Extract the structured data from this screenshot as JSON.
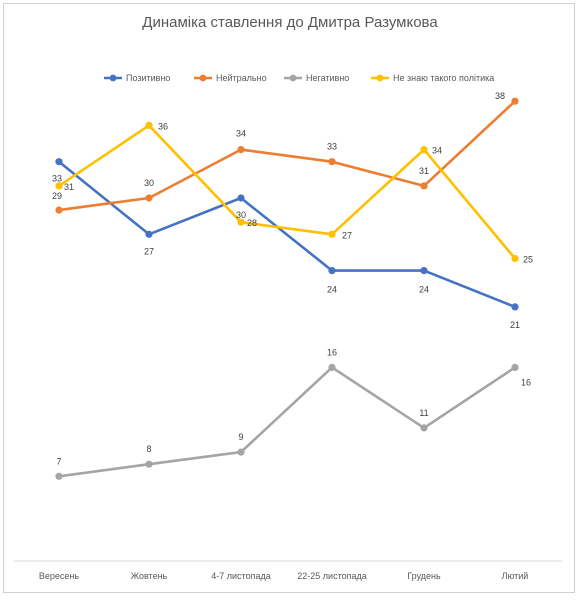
{
  "chart_data": {
    "type": "line",
    "title": "Динаміка ставлення до Дмитра Разумкова",
    "categories": [
      "Вересень",
      "Жовтень",
      "4-7 листопада",
      "22-25 листопада",
      "Грудень",
      "Лютий"
    ],
    "ylim": [
      0,
      45
    ],
    "grid": false,
    "legend_position": "top",
    "series": [
      {
        "name": "Позитивно",
        "color": "#4472C4",
        "values": [
          33,
          27,
          30,
          24,
          24,
          21
        ]
      },
      {
        "name": "Нейтрально",
        "color": "#ED7D31",
        "values": [
          29,
          30,
          34,
          33,
          31,
          38
        ]
      },
      {
        "name": "Негативно",
        "color": "#A5A5A5",
        "values": [
          7,
          8,
          9,
          16,
          11,
          16
        ]
      },
      {
        "name": "Не знаю такого політика",
        "color": "#FFC000",
        "values": [
          31,
          36,
          28,
          27,
          34,
          25
        ]
      }
    ]
  }
}
